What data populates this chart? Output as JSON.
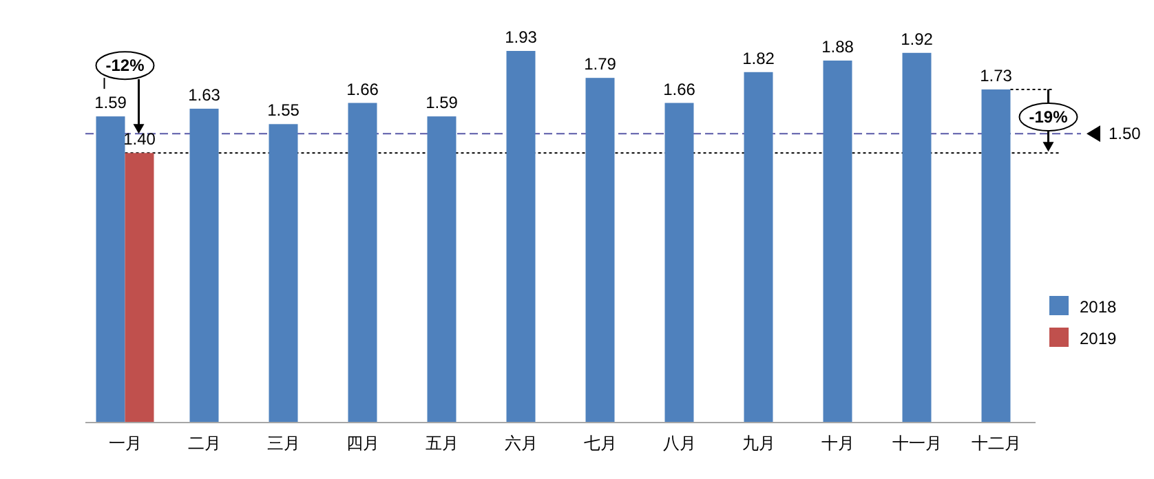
{
  "chart_data": {
    "type": "bar",
    "categories": [
      "一月",
      "二月",
      "三月",
      "四月",
      "五月",
      "六月",
      "七月",
      "八月",
      "九月",
      "十月",
      "十一月",
      "十二月"
    ],
    "series": [
      {
        "name": "2018",
        "color": "#4f81bd",
        "values": [
          1.59,
          1.63,
          1.55,
          1.66,
          1.59,
          1.93,
          1.79,
          1.66,
          1.82,
          1.88,
          1.92,
          1.73
        ],
        "value_labels": [
          "1.59",
          "1.63",
          "1.55",
          "1.66",
          "1.59",
          "1.93",
          "1.79",
          "1.66",
          "1.82",
          "1.88",
          "1.92",
          "1.73"
        ]
      },
      {
        "name": "2019",
        "color": "#c0504d",
        "values": [
          1.4,
          null,
          null,
          null,
          null,
          null,
          null,
          null,
          null,
          null,
          null,
          null
        ],
        "value_labels": [
          "1.40",
          null,
          null,
          null,
          null,
          null,
          null,
          null,
          null,
          null,
          null,
          null
        ]
      }
    ],
    "legend": "right",
    "ref_lines": [
      {
        "axis": "y",
        "value": 1.5,
        "label": "1.50",
        "color": "#5a5aa8",
        "line_style": "dashed"
      },
      {
        "axis": "y",
        "value": 1.4,
        "color": "#000000",
        "line_style": "dotted"
      }
    ],
    "annotations": [
      {
        "text": "-12%",
        "x": "一月",
        "y": 1.59
      },
      {
        "text": "-19%",
        "x": "十二月",
        "y": 1.73
      }
    ]
  }
}
